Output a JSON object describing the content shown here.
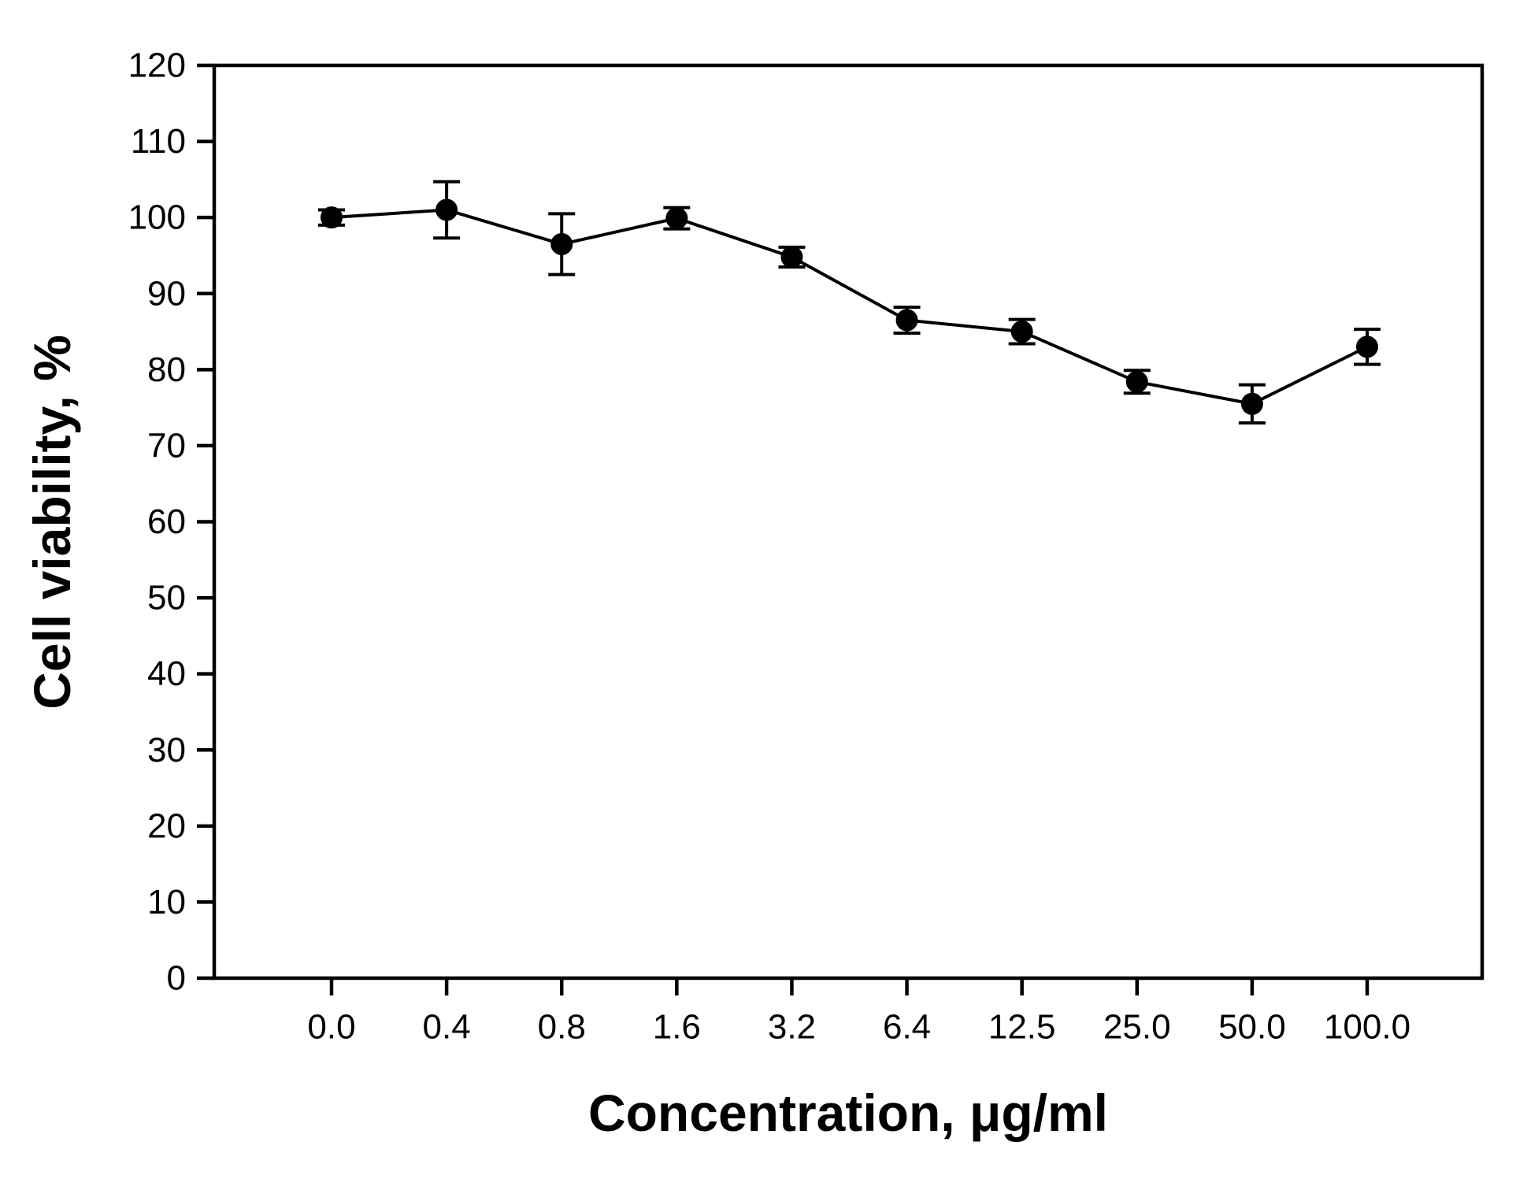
{
  "chart_data": {
    "type": "line",
    "title": "",
    "categories": [
      "0.0",
      "0.4",
      "0.8",
      "1.6",
      "3.2",
      "6.4",
      "12.5",
      "25.0",
      "50.0",
      "100.0"
    ],
    "series": [
      {
        "name": "Cell viability",
        "values": [
          100.0,
          101.0,
          96.5,
          99.9,
          94.8,
          86.5,
          85.0,
          78.4,
          75.5,
          83.0
        ],
        "errors": [
          1.0,
          3.7,
          4.0,
          1.4,
          1.3,
          1.7,
          1.6,
          1.5,
          2.5,
          2.3
        ]
      }
    ],
    "xlabel": "Concentration, μg/ml",
    "ylabel": "Cell viability, %",
    "ylim": [
      0,
      120
    ],
    "yticks": [
      0,
      10,
      20,
      30,
      40,
      50,
      60,
      70,
      80,
      90,
      100,
      110,
      120
    ],
    "grid": false,
    "legend": "none",
    "marker": "filled-circle",
    "line_color": "#000000",
    "background": "#ffffff"
  }
}
